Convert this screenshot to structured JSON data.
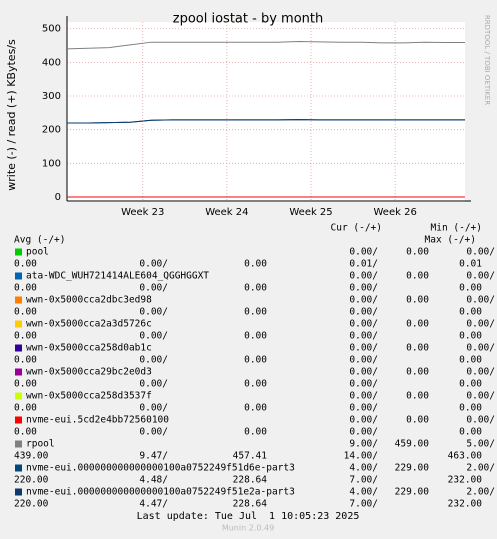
{
  "chart_data": {
    "type": "line",
    "title": "zpool iostat - by month",
    "y_label": "write (-) / read (+) KBytes/s",
    "side_label": "RRDTOOL / TOBI OETIKER",
    "ylim": [
      -12,
      520
    ],
    "yticks": [
      0,
      100,
      200,
      300,
      400,
      500
    ],
    "xlim": [
      22.1,
      26.83
    ],
    "xticks": [
      {
        "value": 23,
        "label": "Week 23"
      },
      {
        "value": 24,
        "label": "Week 24"
      },
      {
        "value": 25,
        "label": "Week 25"
      },
      {
        "value": 26,
        "label": "Week 26"
      }
    ],
    "grid": true,
    "x": [
      22.1,
      22.35,
      22.6,
      22.85,
      23.1,
      23.35,
      23.6,
      23.85,
      24.1,
      24.35,
      24.6,
      24.85,
      25.1,
      25.35,
      25.6,
      25.85,
      26.1,
      26.35,
      26.6,
      26.83
    ],
    "series": [
      {
        "name": "pool",
        "color": "#00cc00",
        "values": [
          0,
          0,
          0,
          0,
          0,
          0,
          0,
          0,
          0,
          0,
          0,
          0,
          0,
          0,
          0,
          0,
          0,
          0,
          0,
          0
        ]
      },
      {
        "name": "ata-WDC_WUH721414ALE604_QGGHGGXT",
        "color": "#0066b3",
        "values": [
          0,
          0,
          0,
          0,
          0,
          0,
          0,
          0,
          0,
          0,
          0,
          0,
          0,
          0,
          0,
          0,
          0,
          0,
          0,
          0
        ]
      },
      {
        "name": "wwn-0x5000cca2dbc3ed98",
        "color": "#ff8000",
        "values": [
          0,
          0,
          0,
          0,
          0,
          0,
          0,
          0,
          0,
          0,
          0,
          0,
          0,
          0,
          0,
          0,
          0,
          0,
          0,
          0
        ]
      },
      {
        "name": "wwn-0x5000cca2a3d5726c",
        "color": "#ffcc00",
        "values": [
          0,
          0,
          0,
          0,
          0,
          0,
          0,
          0,
          0,
          0,
          0,
          0,
          0,
          0,
          0,
          0,
          0,
          0,
          0,
          0
        ]
      },
      {
        "name": "wwn-0x5000cca258d0ab1c",
        "color": "#330099",
        "values": [
          0,
          0,
          0,
          0,
          0,
          0,
          0,
          0,
          0,
          0,
          0,
          0,
          0,
          0,
          0,
          0,
          0,
          0,
          0,
          0
        ]
      },
      {
        "name": "wwn-0x5000cca29bc2e0d3",
        "color": "#990099",
        "values": [
          0,
          0,
          0,
          0,
          0,
          0,
          0,
          0,
          0,
          0,
          0,
          0,
          0,
          0,
          0,
          0,
          0,
          0,
          0,
          0
        ]
      },
      {
        "name": "wwn-0x5000cca258d3537f",
        "color": "#ccff00",
        "values": [
          0,
          0,
          0,
          0,
          0,
          0,
          0,
          0,
          0,
          0,
          0,
          0,
          0,
          0,
          0,
          0,
          0,
          0,
          0,
          0
        ]
      },
      {
        "name": "nvme-eui.5cd2e4bb72560100",
        "color": "#ff0000",
        "values": [
          0,
          0,
          0,
          0,
          0,
          0,
          0,
          0,
          0,
          0,
          0,
          0,
          0,
          0,
          0,
          0,
          0,
          0,
          0,
          0
        ]
      },
      {
        "name": "rpool",
        "color": "#808080",
        "values": [
          440,
          442,
          444,
          452,
          460,
          460,
          460,
          460,
          460,
          460,
          460,
          462,
          461,
          460,
          460,
          458,
          458,
          460,
          459,
          459
        ]
      },
      {
        "name": "nvme-eui.000000000000000100a0752249f51d6e-part3",
        "color": "#00487d",
        "values": [
          220,
          220,
          221,
          222,
          228,
          229,
          229,
          229,
          229,
          229,
          229,
          230,
          229,
          229,
          229,
          229,
          229,
          229,
          229,
          229
        ]
      },
      {
        "name": "nvme-eui.000000000000000100a0752249f51e2a-part3",
        "color": "#0b3a6b",
        "values": [
          220,
          220,
          221,
          222,
          228,
          229,
          229,
          229,
          229,
          229,
          229,
          230,
          229,
          229,
          229,
          229,
          229,
          229,
          229,
          229
        ]
      }
    ],
    "legend_header": {
      "cur": "Cur (-/+)",
      "min": "Min (-/+)",
      "avg": "Avg (-/+)",
      "max": "Max (-/+)"
    },
    "legend": [
      {
        "line1": [
          "0.00/",
          "0.00",
          "0.00/"
        ],
        "line2": [
          "0.00",
          "0.00/",
          "0.00",
          "0.01/",
          "0.01"
        ]
      },
      {
        "line1": [
          "0.00/",
          "0.00",
          "0.00/"
        ],
        "line2": [
          "0.00",
          "0.00/",
          "0.00",
          "0.00/",
          "0.00"
        ]
      },
      {
        "line1": [
          "0.00/",
          "0.00",
          "0.00/"
        ],
        "line2": [
          "0.00",
          "0.00/",
          "0.00",
          "0.00/",
          "0.00"
        ]
      },
      {
        "line1": [
          "0.00/",
          "0.00",
          "0.00/"
        ],
        "line2": [
          "0.00",
          "0.00/",
          "0.00",
          "0.00/",
          "0.00"
        ]
      },
      {
        "line1": [
          "0.00/",
          "0.00",
          "0.00/"
        ],
        "line2": [
          "0.00",
          "0.00/",
          "0.00",
          "0.00/",
          "0.00"
        ]
      },
      {
        "line1": [
          "0.00/",
          "0.00",
          "0.00/"
        ],
        "line2": [
          "0.00",
          "0.00/",
          "0.00",
          "0.00/",
          "0.00"
        ]
      },
      {
        "line1": [
          "0.00/",
          "0.00",
          "0.00/"
        ],
        "line2": [
          "0.00",
          "0.00/",
          "0.00",
          "0.00/",
          "0.00"
        ]
      },
      {
        "line1": [
          "0.00/",
          "0.00",
          "0.00/"
        ],
        "line2": [
          "0.00",
          "0.00/",
          "0.00",
          "0.00/",
          "0.00"
        ]
      },
      {
        "line1": [
          "9.00/",
          "459.00",
          "5.00/"
        ],
        "line2": [
          "439.00",
          "9.47/",
          "457.41",
          "14.00/",
          "463.00"
        ]
      },
      {
        "line1": [
          "4.00/",
          "229.00",
          "2.00/"
        ],
        "line2": [
          "220.00",
          "4.48/",
          "228.64",
          "7.00/",
          "232.00"
        ]
      },
      {
        "line1": [
          "4.00/",
          "229.00",
          "2.00/"
        ],
        "line2": [
          "220.00",
          "4.47/",
          "228.64",
          "7.00/",
          "232.00"
        ]
      }
    ],
    "last_update": "Last update: Tue Jul  1 10:05:23 2025",
    "footer": "Munin 2.0.49"
  }
}
